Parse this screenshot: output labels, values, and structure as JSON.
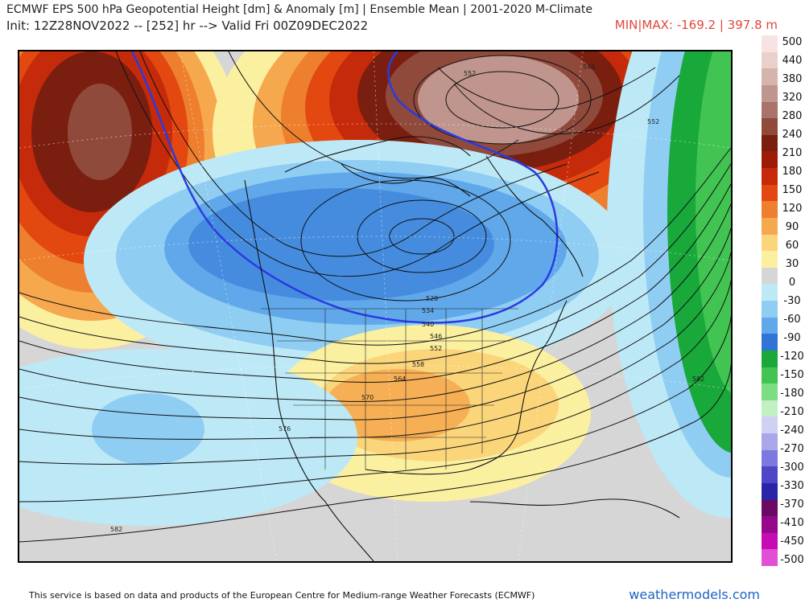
{
  "header": {
    "title_line1": "ECMWF EPS 500 hPa Geopotential Height [dm] & Anomaly [m] | Ensemble Mean | 2001-2020 M-Climate",
    "title_line2": "Init: 12Z28NOV2022 -- [252] hr --> Valid Fri 00Z09DEC2022",
    "minmax": "MIN|MAX: -169.2 | 397.8 m"
  },
  "colorbar": {
    "labels": [
      "500",
      "440",
      "380",
      "320",
      "280",
      "240",
      "210",
      "180",
      "150",
      "120",
      "90",
      "60",
      "30",
      "0",
      "-30",
      "-60",
      "-90",
      "-120",
      "-150",
      "-180",
      "-210",
      "-240",
      "-270",
      "-300",
      "-330",
      "-370",
      "-410",
      "-450",
      "-500"
    ],
    "colors": [
      "#f7e3e3",
      "#ead0cc",
      "#d6b4ad",
      "#bf958d",
      "#a87369",
      "#8f4a3c",
      "#7a1e10",
      "#9e1b08",
      "#c52a0b",
      "#e24810",
      "#ee7f2f",
      "#f5a84e",
      "#fbd57a",
      "#fbf0a0",
      "#d6d6d6",
      "#bde9f7",
      "#8fcdf3",
      "#60a8ea",
      "#2f74d6",
      "#19a83a",
      "#42c453",
      "#7ddd82",
      "#c1f0c3",
      "#d0d0f4",
      "#a9a6ea",
      "#7d78df",
      "#4d47c8",
      "#2a24a6",
      "#6a0a62",
      "#94098c",
      "#c40bb4",
      "#e34ed6"
    ]
  },
  "map": {
    "contour_labels": [
      "546",
      "552",
      "552",
      "528",
      "534",
      "540",
      "546",
      "552",
      "558",
      "564",
      "570",
      "576",
      "582",
      "582"
    ]
  },
  "footer": {
    "attribution": "This service is based on data and products of the European Centre for Medium-range Weather Forecasts (ECMWF)",
    "brand": "weathermodels.com"
  }
}
